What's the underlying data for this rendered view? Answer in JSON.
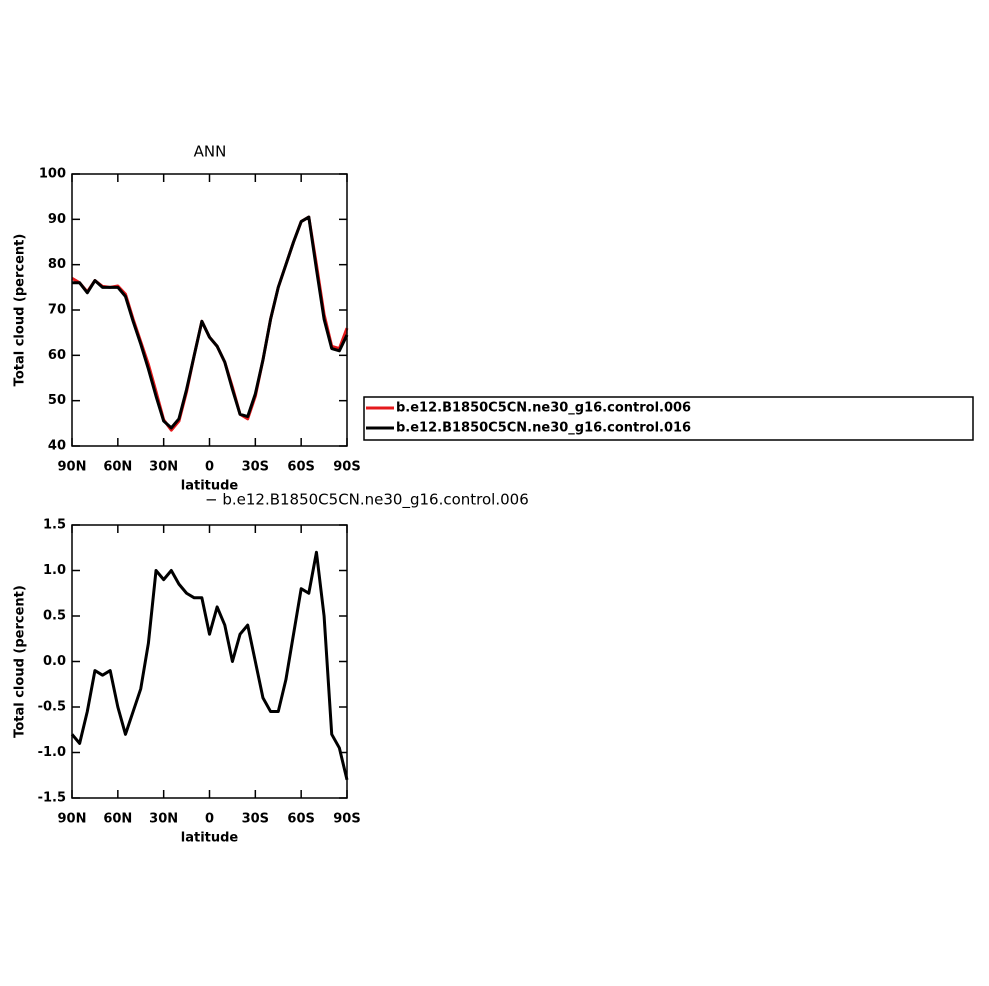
{
  "chart_data": [
    {
      "type": "line",
      "title": "ANN",
      "x_label": "latitude",
      "y_label": "Total cloud (percent)",
      "x": [
        90,
        85,
        80,
        75,
        70,
        65,
        60,
        55,
        50,
        45,
        40,
        35,
        30,
        25,
        20,
        15,
        10,
        5,
        0,
        -5,
        -10,
        -15,
        -20,
        -25,
        -30,
        -35,
        -40,
        -45,
        -50,
        -55,
        -60,
        -65,
        -70,
        -75,
        -80,
        -85,
        -90
      ],
      "series": [
        {
          "name": "b.e12.B1850C5CN.ne30_g16.control.006",
          "color": "#e41a1c",
          "values": [
            77,
            76,
            74,
            76.5,
            75.2,
            75,
            75.3,
            73.5,
            68,
            63,
            58,
            52,
            45.8,
            43.5,
            45.5,
            52,
            60,
            67.5,
            64,
            62,
            58.5,
            53,
            47,
            46,
            51,
            59,
            68,
            75,
            80,
            85,
            89.5,
            90.5,
            80,
            69,
            62,
            61.5,
            66
          ]
        },
        {
          "name": "b.e12.B1850C5CN.ne30_g16.control.016",
          "color": "#000000",
          "values": [
            76,
            76,
            73.8,
            76.5,
            75,
            75,
            75,
            73,
            67.5,
            62.5,
            57,
            51,
            45.5,
            44,
            46,
            52.5,
            60,
            67.5,
            64,
            62,
            58.5,
            52.5,
            47,
            46.5,
            51.5,
            59,
            68,
            75,
            80,
            85,
            89.5,
            90.5,
            79,
            68,
            61.5,
            61,
            64.5
          ]
        }
      ],
      "xlim": [
        90,
        -90
      ],
      "xticks": [
        {
          "value": 90,
          "label": "90N"
        },
        {
          "value": 60,
          "label": "60N"
        },
        {
          "value": 30,
          "label": "30N"
        },
        0,
        {
          "value": -30,
          "label": "30S"
        },
        {
          "value": -60,
          "label": "60S"
        },
        {
          "value": -90,
          "label": "90S"
        }
      ],
      "ylim": [
        40,
        100
      ],
      "yticks": [
        40,
        50,
        60,
        70,
        80,
        90,
        100
      ]
    },
    {
      "type": "line",
      "title": "− b.e12.B1850C5CN.ne30_g16.control.006",
      "x_label": "latitude",
      "y_label": "Total cloud (percent)",
      "x": [
        90,
        85,
        80,
        75,
        70,
        65,
        60,
        55,
        50,
        45,
        40,
        35,
        30,
        25,
        20,
        15,
        10,
        5,
        0,
        -5,
        -10,
        -15,
        -20,
        -25,
        -30,
        -35,
        -40,
        -45,
        -50,
        -55,
        -60,
        -65,
        -70,
        -75,
        -80,
        -85,
        -90
      ],
      "series": [
        {
          "color": "#000000",
          "values": [
            -0.8,
            -0.9,
            -0.55,
            -0.1,
            -0.15,
            -0.1,
            -0.5,
            -0.8,
            -0.55,
            -0.3,
            0.2,
            1.0,
            0.9,
            1.0,
            0.85,
            0.75,
            0.7,
            0.7,
            0.3,
            0.6,
            0.4,
            0.0,
            0.3,
            0.4,
            0.0,
            -0.4,
            -0.55,
            -0.55,
            -0.2,
            0.3,
            0.8,
            0.75,
            1.2,
            0.5,
            -0.8,
            -0.95,
            -1.3
          ]
        }
      ],
      "xlim": [
        90,
        -90
      ],
      "xticks": [
        {
          "value": 90,
          "label": "90N"
        },
        {
          "value": 60,
          "label": "60N"
        },
        {
          "value": 30,
          "label": "30N"
        },
        0,
        {
          "value": -30,
          "label": "30S"
        },
        {
          "value": -60,
          "label": "60S"
        },
        {
          "value": -90,
          "label": "90S"
        }
      ],
      "ylim": [
        -1.5,
        1.5
      ],
      "yticks": [
        -1.5,
        {
          "value": -1,
          "label": "-1.0"
        },
        -0.5,
        {
          "value": 0,
          "label": "0.0"
        },
        0.5,
        {
          "value": 1,
          "label": "1.0"
        },
        1.5
      ]
    }
  ]
}
